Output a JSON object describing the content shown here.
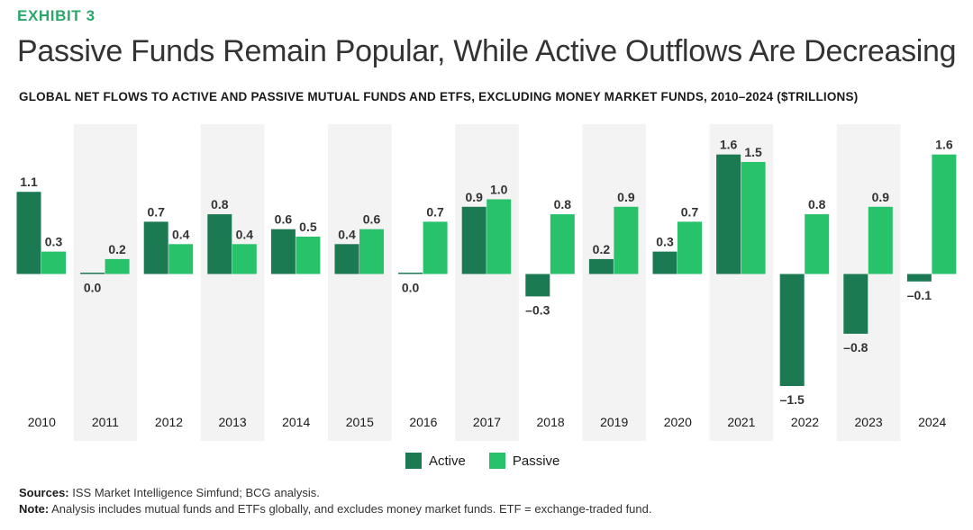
{
  "header": {
    "exhibit": "EXHIBIT 3",
    "title": "Passive Funds Remain Popular, While Active Outflows Are Decreasing",
    "subtitle": "GLOBAL NET FLOWS TO ACTIVE AND PASSIVE MUTUAL FUNDS AND ETFS, EXCLUDING MONEY MARKET FUNDS, 2010–2024 ($TRILLIONS)"
  },
  "colors": {
    "active": "#1c7a52",
    "passive": "#27c26a",
    "band": "#f3f3f3",
    "label": "#333333"
  },
  "chart_data": {
    "type": "bar",
    "categories": [
      "2010",
      "2011",
      "2012",
      "2013",
      "2014",
      "2015",
      "2016",
      "2017",
      "2018",
      "2019",
      "2020",
      "2021",
      "2022",
      "2023",
      "2024"
    ],
    "series": [
      {
        "name": "Active",
        "values": [
          1.1,
          0.0,
          0.7,
          0.8,
          0.6,
          0.4,
          0.0,
          0.9,
          -0.3,
          0.2,
          0.3,
          1.6,
          -1.5,
          -0.8,
          -0.1
        ]
      },
      {
        "name": "Passive",
        "values": [
          0.3,
          0.2,
          0.4,
          0.4,
          0.5,
          0.6,
          0.7,
          1.0,
          0.8,
          0.9,
          0.7,
          1.5,
          0.8,
          0.9,
          1.6
        ]
      }
    ],
    "value_labels": {
      "Active": [
        "1.1",
        "0.0",
        "0.7",
        "0.8",
        "0.6",
        "0.4",
        "0.0",
        "0.9",
        "–0.3",
        "0.2",
        "0.3",
        "1.6",
        "–1.5",
        "–0.8",
        "–0.1"
      ],
      "Passive": [
        "0.3",
        "0.2",
        "0.4",
        "0.4",
        "0.5",
        "0.6",
        "0.7",
        "1.0",
        "0.8",
        "0.9",
        "0.7",
        "1.5",
        "0.8",
        "0.9",
        "1.6"
      ]
    },
    "legend": [
      "Active",
      "Passive"
    ],
    "legend_position": "bottom-center",
    "alternating_bands": true,
    "grid": false
  },
  "legend": {
    "active_label": "Active",
    "passive_label": "Passive"
  },
  "footer": {
    "sources_label": "Sources:",
    "sources_text": " ISS Market Intelligence Simfund; BCG analysis.",
    "note_label": "Note:",
    "note_text": " Analysis includes mutual funds and ETFs globally, and excludes money market funds. ETF = exchange-traded fund."
  }
}
